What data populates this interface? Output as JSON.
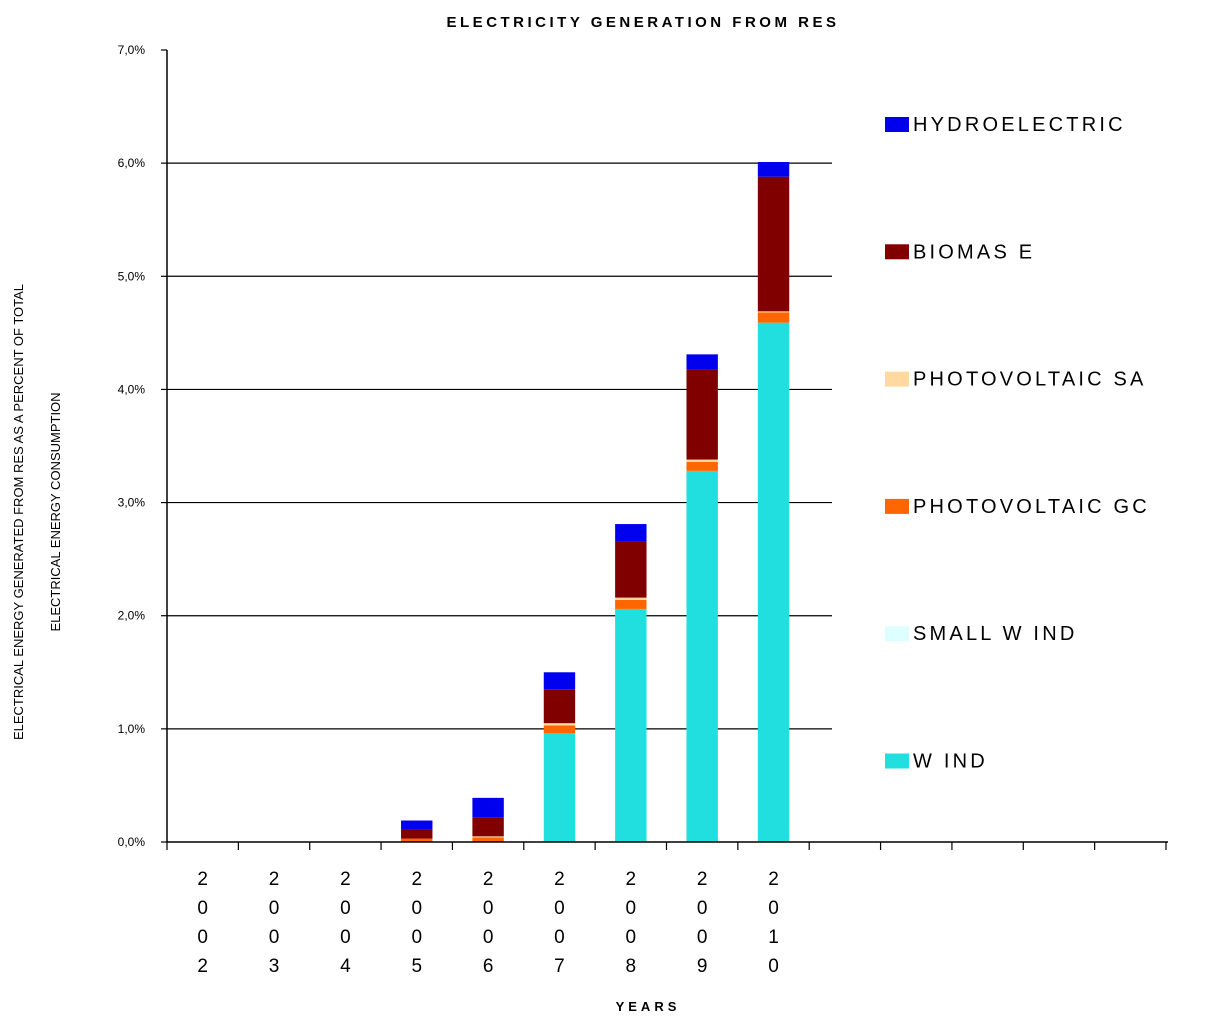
{
  "chart_data": {
    "type": "bar",
    "stacked": true,
    "title": "ELECTRICITY GENERATION FROM RES",
    "xlabel": "YEARS",
    "ylabel_lines": [
      "ELECTRICAL ENERGY GENERATED FROM RES AS A PERCENT OF  TOTAL",
      "ELECTRICAL  ENERGY CONSUMPTION"
    ],
    "categories": [
      "2002",
      "2003",
      "2004",
      "2005",
      "2006",
      "2007",
      "2008",
      "2009",
      "2010"
    ],
    "extra_empty_categories": 5,
    "ylim": [
      0,
      7
    ],
    "yticks": [
      0,
      1,
      2,
      3,
      4,
      5,
      6,
      7
    ],
    "ytick_labels": [
      "0,0%",
      "1,0%",
      "2,0%",
      "3,0%",
      "4,0%",
      "5,0%",
      "6,0%",
      "7,0%"
    ],
    "grid": true,
    "legend_position": "right",
    "series": [
      {
        "name": "W IND",
        "color": "#22dfdf",
        "values": [
          0,
          0,
          0,
          0.0,
          0.0,
          0.96,
          2.06,
          3.28,
          4.59
        ]
      },
      {
        "name": "SMALL W IND",
        "color": "#ddffff",
        "values": [
          0,
          0,
          0,
          0.0,
          0.0,
          0.0,
          0.0,
          0.0,
          0.0
        ]
      },
      {
        "name": "PHOTOVOLTAIC GC",
        "color": "#ff6600",
        "values": [
          0,
          0,
          0,
          0.03,
          0.04,
          0.07,
          0.08,
          0.08,
          0.09
        ]
      },
      {
        "name": "PHOTOVOLTAIC SA",
        "color": "#ffd9a0",
        "values": [
          0,
          0,
          0,
          0.0,
          0.01,
          0.02,
          0.02,
          0.02,
          0.01
        ]
      },
      {
        "name": "BIOMAS E",
        "color": "#800000",
        "values": [
          0,
          0,
          0,
          0.08,
          0.17,
          0.3,
          0.5,
          0.8,
          1.19
        ]
      },
      {
        "name": "HYDROELECTRIC",
        "color": "#0000ee",
        "values": [
          0,
          0,
          0,
          0.08,
          0.17,
          0.15,
          0.15,
          0.13,
          0.13
        ]
      }
    ],
    "legend_order": [
      "HYDROELECTRIC",
      "BIOMAS E",
      "PHOTOVOLTAIC SA",
      "PHOTOVOLTAIC GC",
      "SMALL W IND",
      "W IND"
    ]
  }
}
